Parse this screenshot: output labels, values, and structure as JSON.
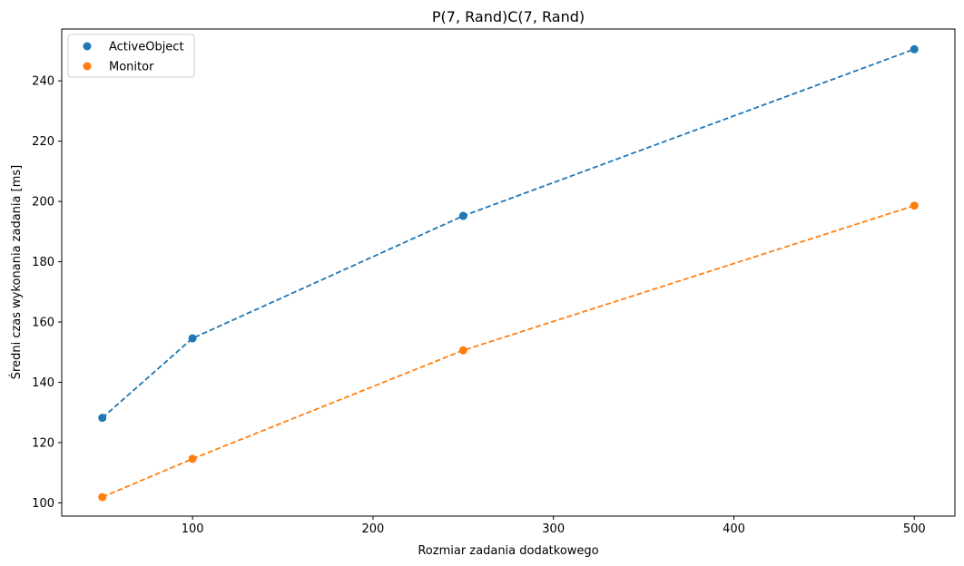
{
  "chart_data": {
    "type": "scatter",
    "title": "P(7, Rand)C(7, Rand)",
    "xlabel": "Rozmiar zadania dodatkowego",
    "ylabel": "Średni czas wykonania zadania [ms]",
    "xlim": [
      27.5,
      522.5
    ],
    "ylim": [
      95.6,
      257.2
    ],
    "xticks": [
      100,
      200,
      300,
      400,
      500
    ],
    "yticks": [
      100,
      120,
      140,
      160,
      180,
      200,
      220,
      240
    ],
    "grid": false,
    "legend_position": "top-left",
    "series": [
      {
        "name": "ActiveObject",
        "color": "#1f77b4",
        "line_style": "dashed",
        "x": [
          50,
          100,
          250,
          500
        ],
        "y": [
          128.2,
          154.6,
          195.2,
          250.5
        ]
      },
      {
        "name": "Monitor",
        "color": "#ff7f0e",
        "line_style": "dashed",
        "x": [
          50,
          100,
          250,
          500
        ],
        "y": [
          101.9,
          114.6,
          150.6,
          198.6
        ]
      }
    ]
  }
}
